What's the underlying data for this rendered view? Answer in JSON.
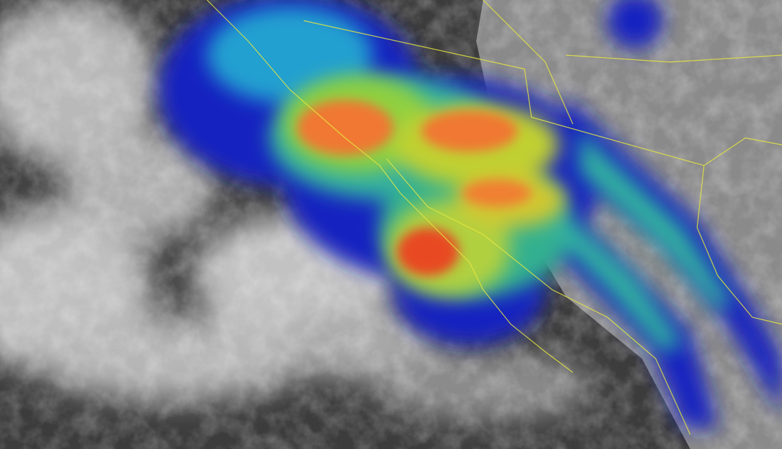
{
  "image": {
    "kind": "satellite-infrared-composite",
    "colors": {
      "ocean_background": "#3c3c3c",
      "land_background": "#8a8a8a",
      "cloud_white": "#e6e6e6",
      "ir_blue": "#1020c0",
      "ir_cyan": "#20a0d0",
      "ir_green": "#50d060",
      "ir_yellow": "#e0d030",
      "ir_orange": "#f08030",
      "ir_red": "#e04020",
      "boundary_lines": "#e8e840"
    }
  }
}
